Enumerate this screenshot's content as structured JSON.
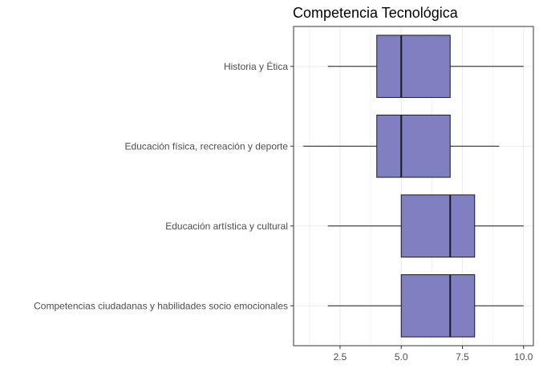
{
  "chart_data": {
    "type": "boxplot",
    "orientation": "horizontal",
    "title": "Competencia Tecnológica",
    "xlabel": "",
    "ylabel": "",
    "xlim": [
      0.6,
      10.4
    ],
    "x_ticks": [
      2.5,
      5.0,
      7.5,
      10.0
    ],
    "x_tick_labels": [
      "2.5",
      "5.0",
      "7.5",
      "10.0"
    ],
    "grid": true,
    "legend": "none",
    "colors": {
      "box_fill": "#7f7fc2",
      "box_stroke": "#1a1a1a",
      "whisker": "#1a1a1a",
      "grid": "#ebebeb",
      "panel_border": "#333333"
    },
    "categories": [
      "Historia y Ética",
      "Educación física, recreación y deporte",
      "Educación artística y cultural",
      "Competencias ciudadanas y habilidades socio emocionales"
    ],
    "boxes": [
      {
        "category": "Historia y Ética",
        "min": 2,
        "q1": 4,
        "median": 5,
        "q3": 7,
        "max": 10
      },
      {
        "category": "Educación física, recreación y deporte",
        "min": 1,
        "q1": 4,
        "median": 5,
        "q3": 7,
        "max": 9
      },
      {
        "category": "Educación artística y cultural",
        "min": 2,
        "q1": 5,
        "median": 7,
        "q3": 8,
        "max": 10
      },
      {
        "category": "Competencias ciudadanas y habilidades socio emocionales",
        "min": 2,
        "q1": 5,
        "median": 7,
        "q3": 8,
        "max": 10
      }
    ]
  }
}
